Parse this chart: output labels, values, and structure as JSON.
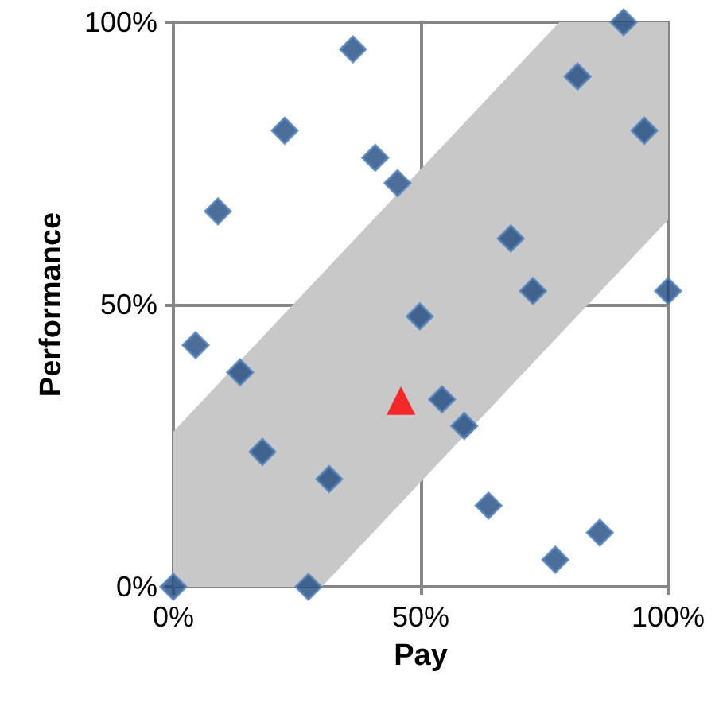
{
  "chart_data": {
    "type": "scatter",
    "xlabel": "Pay",
    "ylabel": "Performance",
    "xlim": [
      0,
      100
    ],
    "ylim": [
      0,
      100
    ],
    "xticks": [
      {
        "value": 0,
        "label": "0%"
      },
      {
        "value": 50,
        "label": "50%"
      },
      {
        "value": 100,
        "label": "100%"
      }
    ],
    "yticks": [
      {
        "value": 0,
        "label": "0%"
      },
      {
        "value": 50,
        "label": "50%"
      },
      {
        "value": 100,
        "label": "100%"
      }
    ],
    "grid": true,
    "series": [
      {
        "type": "area",
        "color": "#c8c8c8",
        "x": [
          0,
          30,
          78,
          100
        ],
        "values": [
          null,
          null,
          null,
          null
        ],
        "lower": [
          0,
          0,
          44.6,
          65
        ],
        "upper": [
          27.5,
          55.4,
          100,
          100
        ]
      },
      {
        "marker": "diamond",
        "color": "#1f497d",
        "x": [
          36.3,
          22.5,
          40.8,
          45.3,
          9,
          91,
          81.7,
          95.2,
          68.2,
          72.7,
          100,
          49.8,
          4.5,
          13.5,
          18,
          31.5,
          0,
          27.3,
          54.3,
          58.8,
          63.7,
          86.2,
          77.2
        ],
        "values": [
          95.2,
          80.8,
          76,
          71.5,
          66.5,
          100,
          90.4,
          80.8,
          61.7,
          52.4,
          52.4,
          47.9,
          42.8,
          38,
          23.9,
          19.1,
          0,
          0,
          33.2,
          28.5,
          14.4,
          9.6,
          4.8
        ]
      },
      {
        "marker": "triangle",
        "color": "#ff0000",
        "x": [
          46
        ],
        "values": [
          33
        ]
      }
    ]
  }
}
